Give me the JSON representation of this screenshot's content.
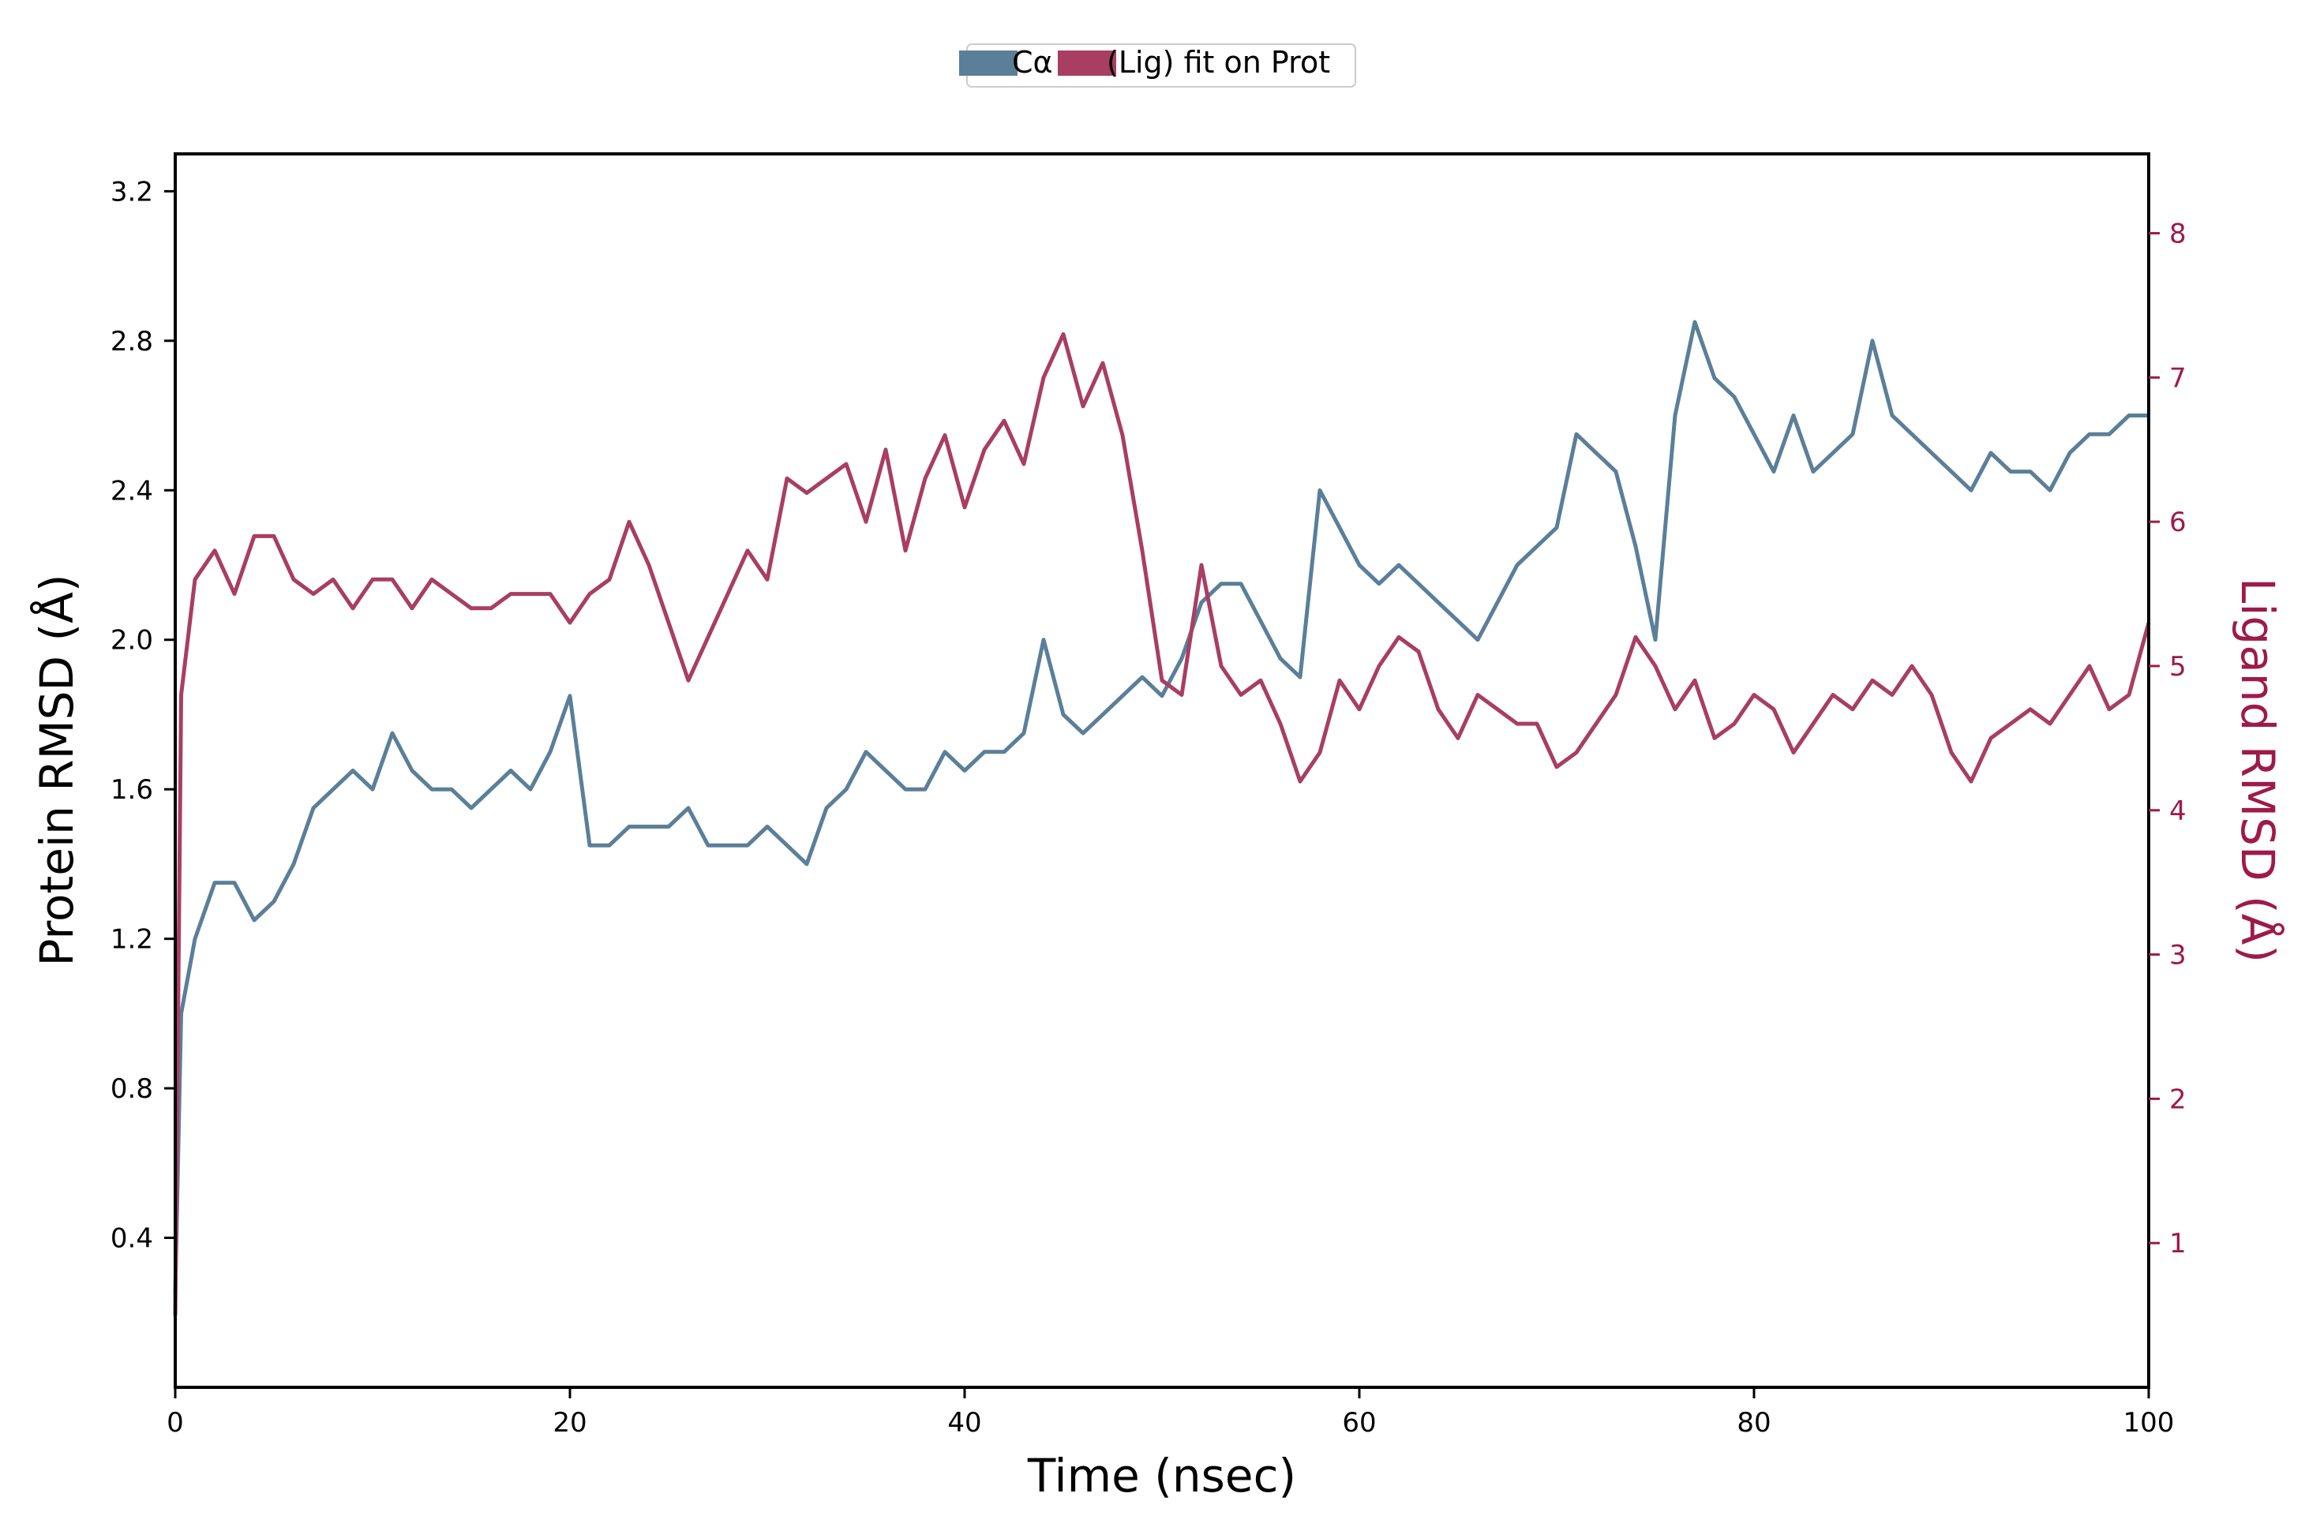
{
  "chart_data": {
    "type": "line",
    "xlabel": "Time (nsec)",
    "ylabel_left": "Protein RMSD (Å)",
    "ylabel_right": "Ligand RMSD (Å)",
    "xlim": [
      0,
      100
    ],
    "ylim_left": [
      0,
      3.3
    ],
    "ylim_right": [
      0,
      8.55
    ],
    "xticks": [
      "0",
      "20",
      "40",
      "60",
      "80",
      "100"
    ],
    "yticks_left": [
      "0.4",
      "0.8",
      "1.2",
      "1.6",
      "2.0",
      "2.4",
      "2.8",
      "3.2"
    ],
    "yticks_right": [
      "1",
      "2",
      "3",
      "4",
      "5",
      "6",
      "7",
      "8"
    ],
    "grid": false,
    "legend_position": "top-center",
    "legend_labels": [
      "Cα",
      "(Lig) fit on Prot"
    ],
    "colors": {
      "protein": "#5b7f99",
      "ligand": "#a83e62",
      "ligand_axis": "#9e1a4a"
    },
    "series": [
      {
        "name": "Cα",
        "axis": "left",
        "x": [
          0,
          0.3,
          1,
          2,
          3,
          4,
          5,
          6,
          7,
          8,
          9,
          10,
          11,
          12,
          13,
          14,
          15,
          16,
          17,
          18,
          19,
          20,
          21,
          22,
          23,
          24,
          25,
          26,
          27,
          28,
          29,
          30,
          31,
          32,
          33,
          34,
          35,
          36,
          37,
          38,
          39,
          40,
          41,
          42,
          43,
          44,
          45,
          46,
          47,
          48,
          49,
          50,
          51,
          52,
          53,
          54,
          55,
          56,
          57,
          58,
          59,
          60,
          61,
          62,
          63,
          64,
          65,
          66,
          67,
          68,
          69,
          70,
          71,
          72,
          73,
          74,
          75,
          76,
          77,
          78,
          79,
          80,
          81,
          82,
          83,
          84,
          85,
          86,
          87,
          88,
          89,
          90,
          91,
          92,
          93,
          94,
          95,
          96,
          97,
          98,
          99,
          100
        ],
        "values": [
          0.25,
          1.0,
          1.2,
          1.35,
          1.35,
          1.25,
          1.3,
          1.4,
          1.55,
          1.6,
          1.65,
          1.6,
          1.75,
          1.65,
          1.6,
          1.6,
          1.55,
          1.6,
          1.65,
          1.6,
          1.7,
          1.85,
          1.45,
          1.45,
          1.5,
          1.5,
          1.5,
          1.55,
          1.45,
          1.45,
          1.45,
          1.5,
          1.45,
          1.4,
          1.55,
          1.6,
          1.7,
          1.65,
          1.6,
          1.6,
          1.7,
          1.65,
          1.7,
          1.7,
          1.75,
          2.0,
          1.8,
          1.75,
          1.8,
          1.85,
          1.9,
          1.85,
          1.95,
          2.1,
          2.15,
          2.15,
          2.05,
          1.95,
          1.9,
          2.4,
          2.3,
          2.2,
          2.15,
          2.2,
          2.15,
          2.1,
          2.05,
          2.0,
          2.1,
          2.2,
          2.25,
          2.3,
          2.55,
          2.5,
          2.45,
          2.25,
          2.0,
          2.6,
          2.85,
          2.7,
          2.65,
          2.55,
          2.45,
          2.6,
          2.45,
          2.5,
          2.55,
          2.8,
          2.6,
          2.55,
          2.5,
          2.45,
          2.4,
          2.5,
          2.45,
          2.45,
          2.4,
          2.5,
          2.55,
          2.55,
          2.6,
          2.6
        ]
      },
      {
        "name": "(Lig) fit on Prot",
        "axis": "right",
        "x": [
          0,
          0.3,
          1,
          2,
          3,
          4,
          5,
          6,
          7,
          8,
          9,
          10,
          11,
          12,
          13,
          14,
          15,
          16,
          17,
          18,
          19,
          20,
          21,
          22,
          23,
          24,
          25,
          26,
          27,
          28,
          29,
          30,
          31,
          32,
          33,
          34,
          35,
          36,
          37,
          38,
          39,
          40,
          41,
          42,
          43,
          44,
          45,
          46,
          47,
          48,
          49,
          50,
          51,
          52,
          53,
          54,
          55,
          56,
          57,
          58,
          59,
          60,
          61,
          62,
          63,
          64,
          65,
          66,
          67,
          68,
          69,
          70,
          71,
          72,
          73,
          74,
          75,
          76,
          77,
          78,
          79,
          80,
          81,
          82,
          83,
          84,
          85,
          86,
          87,
          88,
          89,
          90,
          91,
          92,
          93,
          94,
          95,
          96,
          97,
          98,
          99,
          100
        ],
        "values": [
          0.5,
          4.8,
          5.6,
          5.8,
          5.5,
          5.9,
          5.9,
          5.6,
          5.5,
          5.6,
          5.4,
          5.6,
          5.6,
          5.4,
          5.6,
          5.5,
          5.4,
          5.4,
          5.5,
          5.5,
          5.5,
          5.3,
          5.5,
          5.6,
          6.0,
          5.7,
          5.3,
          4.9,
          5.2,
          5.5,
          5.8,
          5.6,
          6.3,
          6.2,
          6.3,
          6.4,
          6.0,
          6.5,
          5.8,
          6.3,
          6.6,
          6.1,
          6.5,
          6.7,
          6.4,
          7.0,
          7.3,
          6.8,
          7.1,
          6.6,
          5.8,
          4.9,
          4.8,
          5.7,
          5.0,
          4.8,
          4.9,
          4.6,
          4.2,
          4.4,
          4.9,
          4.7,
          5.0,
          5.2,
          5.1,
          4.7,
          4.5,
          4.8,
          4.7,
          4.6,
          4.6,
          4.3,
          4.4,
          4.6,
          4.8,
          5.2,
          5.0,
          4.7,
          4.9,
          4.5,
          4.6,
          4.8,
          4.7,
          4.4,
          4.6,
          4.8,
          4.7,
          4.9,
          4.8,
          5.0,
          4.8,
          4.4,
          4.2,
          4.5,
          4.6,
          4.7,
          4.6,
          4.8,
          5.0,
          4.7,
          4.8,
          5.3
        ]
      }
    ]
  }
}
